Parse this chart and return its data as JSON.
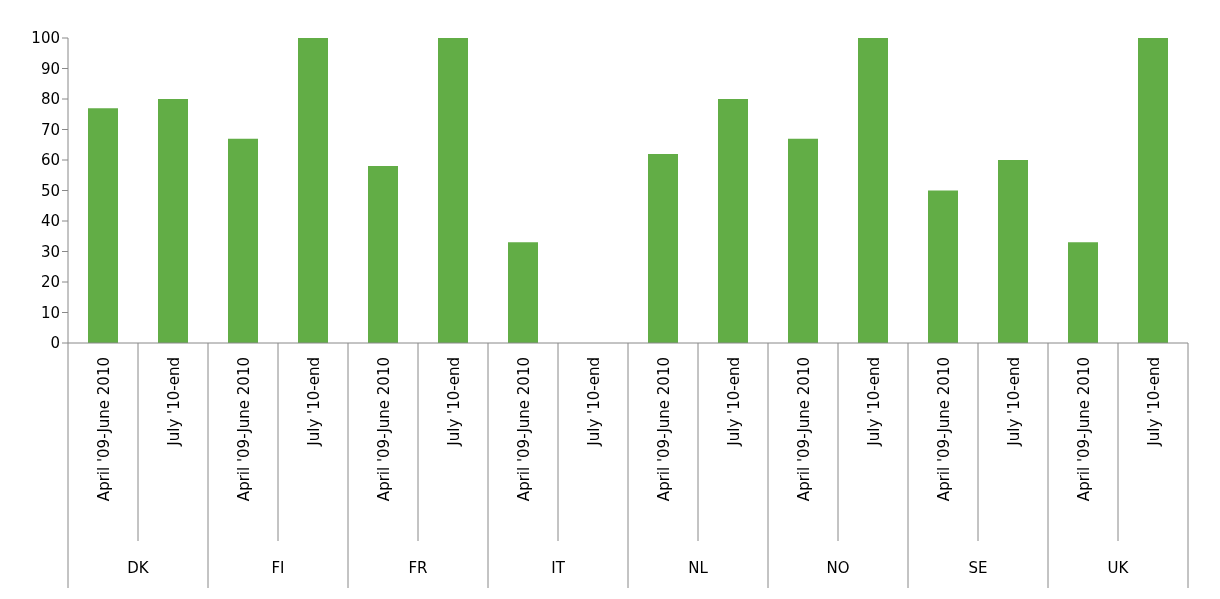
{
  "chart_data": {
    "type": "bar",
    "categories": [
      "April '09-June 2010",
      "July '10-end",
      "April '09-June 2010",
      "July '10-end",
      "April '09-June 2010",
      "July '10-end",
      "April '09-June 2010",
      "July '10-end",
      "April '09-June 2010",
      "July '10-end",
      "April '09-June 2010",
      "July '10-end",
      "April '09-June 2010",
      "July '10-end",
      "April '09-June 2010",
      "July '10-end"
    ],
    "values": [
      77,
      80,
      67,
      100,
      58,
      100,
      33,
      0,
      62,
      80,
      67,
      100,
      50,
      60,
      33,
      100
    ],
    "color": "#62ad46",
    "annotations": [
      "DK",
      "FI",
      "FR",
      "IT",
      "NL",
      "NO",
      "SE",
      "UK"
    ],
    "ylim": [
      0,
      100
    ],
    "yticks": [
      0,
      10,
      20,
      30,
      40,
      50,
      60,
      70,
      80,
      90,
      100
    ],
    "grid": false,
    "legend": false
  }
}
